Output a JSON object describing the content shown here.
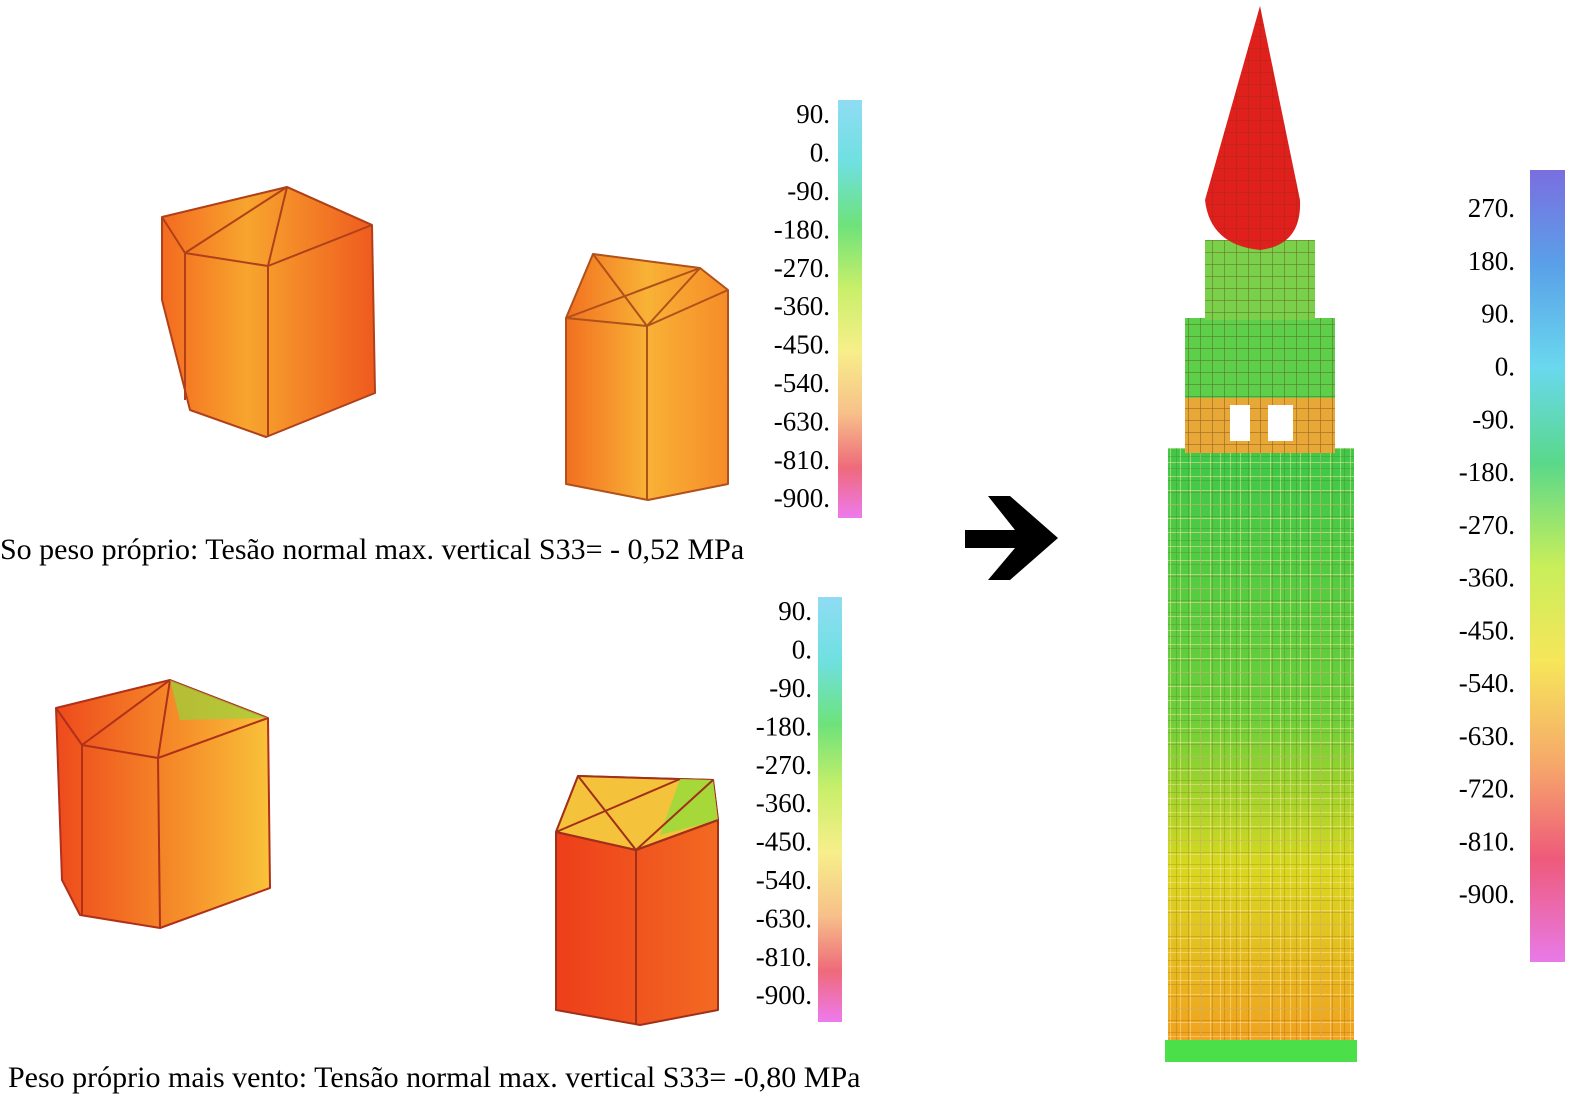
{
  "panels": [
    {
      "legend": [
        "90.",
        "0.",
        "-90.",
        "-180.",
        "-270.",
        "-360.",
        "-450.",
        "-540.",
        "-630.",
        "-810.",
        "-900."
      ],
      "caption": "So peso próprio: Tesão normal max. vertical S33= - 0,52 MPa"
    },
    {
      "legend": [
        "90.",
        "0.",
        "-90.",
        "-180.",
        "-270.",
        "-360.",
        "-450.",
        "-540.",
        "-630.",
        "-810.",
        "-900."
      ],
      "caption": "Peso próprio mais vento: Tensão normal max. vertical S33= -0,80 MPa"
    }
  ],
  "tower": {
    "legend": [
      "270.",
      "180.",
      "90.",
      "0.",
      "-90.",
      "-180.",
      "-270.",
      "-360.",
      "-450.",
      "-540.",
      "-630.",
      "-720.",
      "-810.",
      "-900."
    ]
  }
}
